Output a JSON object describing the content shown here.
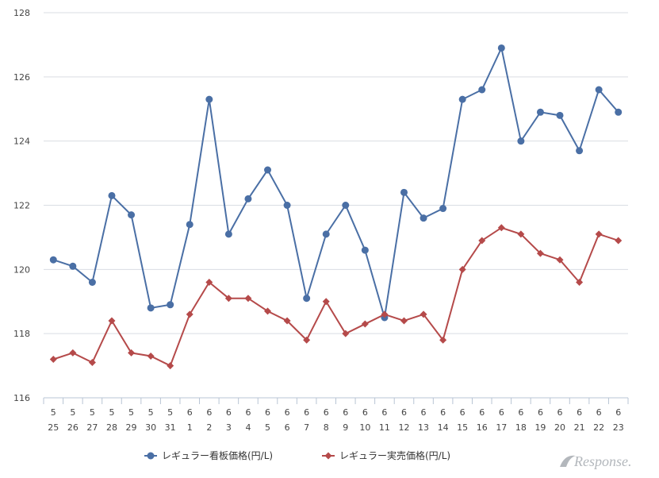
{
  "chart_data": {
    "type": "line",
    "x_top": [
      "5",
      "5",
      "5",
      "5",
      "5",
      "5",
      "5",
      "6",
      "6",
      "6",
      "6",
      "6",
      "6",
      "6",
      "6",
      "6",
      "6",
      "6",
      "6",
      "6",
      "6",
      "6",
      "6",
      "6",
      "6",
      "6",
      "6",
      "6",
      "6",
      "6"
    ],
    "x_bottom": [
      "25",
      "26",
      "27",
      "28",
      "29",
      "30",
      "31",
      "1",
      "2",
      "3",
      "4",
      "5",
      "6",
      "7",
      "8",
      "9",
      "10",
      "11",
      "12",
      "13",
      "14",
      "15",
      "16",
      "17",
      "18",
      "19",
      "20",
      "21",
      "22",
      "23"
    ],
    "ylim": [
      116,
      128
    ],
    "yticks": [
      "116",
      "118",
      "120",
      "122",
      "124",
      "126",
      "128"
    ],
    "grid": true,
    "legend_position": "bottom",
    "series": [
      {
        "name": "レギュラー看板価格(円/L)",
        "color": "#4a6fa5",
        "marker": "circle",
        "values": [
          120.3,
          120.1,
          119.6,
          122.3,
          121.7,
          118.8,
          118.9,
          121.4,
          125.3,
          121.1,
          122.2,
          123.1,
          122.0,
          119.1,
          121.1,
          122.0,
          120.6,
          118.5,
          122.4,
          121.6,
          121.9,
          125.3,
          125.6,
          126.9,
          124.0,
          124.9,
          124.8,
          123.7,
          125.6,
          124.9
        ]
      },
      {
        "name": "レギュラー実売価格(円/L)",
        "color": "#b54a4a",
        "marker": "diamond",
        "values": [
          117.2,
          117.4,
          117.1,
          118.4,
          117.4,
          117.3,
          117.0,
          118.6,
          119.6,
          119.1,
          119.1,
          118.7,
          118.4,
          117.8,
          119.0,
          118.0,
          118.3,
          118.6,
          118.4,
          118.6,
          117.8,
          120.0,
          120.9,
          121.3,
          121.1,
          120.5,
          120.3,
          119.6,
          121.1,
          120.9
        ]
      }
    ]
  },
  "watermark": {
    "text": "Response."
  }
}
